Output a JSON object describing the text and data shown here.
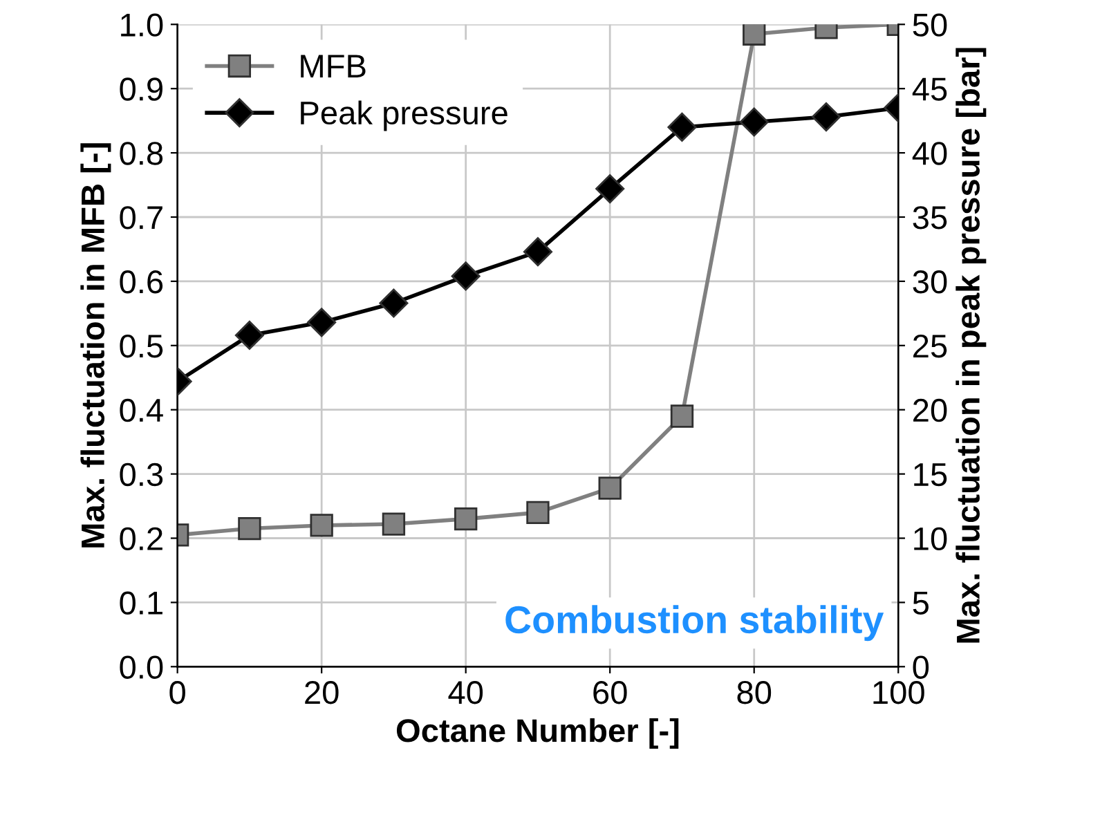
{
  "chart_data": {
    "type": "line",
    "xlabel": "Octane Number [-]",
    "ylabel": "Max. fluctuation in MFB [-]",
    "y2label": "Max. fluctuation in peak pressure [bar]",
    "x": [
      0,
      10,
      20,
      30,
      40,
      50,
      60,
      70,
      80,
      90,
      100
    ],
    "series": [
      {
        "name": "MFB",
        "color": "#808080",
        "marker": "square",
        "values": [
          0.205,
          0.215,
          0.22,
          0.222,
          0.23,
          0.24,
          0.278,
          0.39,
          0.985,
          0.995,
          1.0
        ]
      },
      {
        "name": "Peak pressure",
        "color": "#000000",
        "marker": "diamond",
        "axis": "y2",
        "values": [
          22.2,
          25.8,
          26.8,
          28.3,
          30.4,
          32.3,
          37.2,
          42.0,
          42.4,
          42.8,
          43.5
        ]
      }
    ],
    "xlim": [
      0,
      100
    ],
    "xticks": [
      0,
      20,
      40,
      60,
      80,
      100
    ],
    "ylim": [
      0,
      1
    ],
    "yticks": [
      {
        "value": 0,
        "label": "0.0"
      },
      0.1,
      0.2,
      0.3,
      0.4,
      0.5,
      0.6,
      0.7,
      0.8,
      0.9,
      {
        "value": 1,
        "label": "1.0"
      }
    ],
    "y2lim": [
      0,
      50
    ],
    "y2ticks": [
      0,
      5,
      10,
      15,
      20,
      25,
      30,
      35,
      40,
      45,
      50
    ],
    "grid": true,
    "legend": "top left",
    "line_style": "solid",
    "annotations": [
      "Combustion stability"
    ]
  }
}
